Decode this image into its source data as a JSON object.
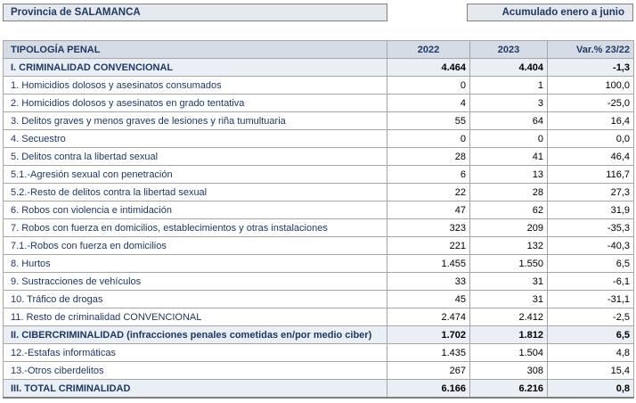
{
  "header": {
    "province": "Provincia de SALAMANCA",
    "period": "Acumulado enero a junio"
  },
  "table": {
    "columns": [
      "TIPOLOGÍA PENAL",
      "2022",
      "2023",
      "Var.% 23/22"
    ],
    "rows": [
      {
        "label": "I. CRIMINALIDAD CONVENCIONAL",
        "y2022": "4.464",
        "y2023": "4.404",
        "var": "-1,3",
        "style": "section"
      },
      {
        "label": "1. Homicidios dolosos y asesinatos consumados",
        "y2022": "0",
        "y2023": "1",
        "var": "100,0",
        "style": "normal"
      },
      {
        "label": "2. Homicidios dolosos y asesinatos en grado tentativa",
        "y2022": "4",
        "y2023": "3",
        "var": "-25,0",
        "style": "normal"
      },
      {
        "label": "3. Delitos graves y menos graves de lesiones y riña tumultuaria",
        "y2022": "55",
        "y2023": "64",
        "var": "16,4",
        "style": "normal"
      },
      {
        "label": "4. Secuestro",
        "y2022": "0",
        "y2023": "0",
        "var": "0,0",
        "style": "normal"
      },
      {
        "label": "5. Delitos contra la libertad sexual",
        "y2022": "28",
        "y2023": "41",
        "var": "46,4",
        "style": "normal"
      },
      {
        "label": "5.1.-Agresión sexual con penetración",
        "y2022": "6",
        "y2023": "13",
        "var": "116,7",
        "style": "normal"
      },
      {
        "label": "5.2.-Resto de delitos contra la libertad sexual",
        "y2022": "22",
        "y2023": "28",
        "var": "27,3",
        "style": "normal"
      },
      {
        "label": "6. Robos con violencia e intimidación",
        "y2022": "47",
        "y2023": "62",
        "var": "31,9",
        "style": "normal"
      },
      {
        "label": "7. Robos con fuerza en domicilios, establecimientos y otras instalaciones",
        "y2022": "323",
        "y2023": "209",
        "var": "-35,3",
        "style": "normal"
      },
      {
        "label": "7.1.-Robos con fuerza en domicilios",
        "y2022": "221",
        "y2023": "132",
        "var": "-40,3",
        "style": "normal"
      },
      {
        "label": "8. Hurtos",
        "y2022": "1.455",
        "y2023": "1.550",
        "var": "6,5",
        "style": "normal"
      },
      {
        "label": "9. Sustracciones de vehículos",
        "y2022": "33",
        "y2023": "31",
        "var": "-6,1",
        "style": "normal"
      },
      {
        "label": "10. Tráfico de drogas",
        "y2022": "45",
        "y2023": "31",
        "var": "-31,1",
        "style": "normal"
      },
      {
        "label": "11. Resto de criminalidad CONVENCIONAL",
        "y2022": "2.474",
        "y2023": "2.412",
        "var": "-2,5",
        "style": "normal"
      },
      {
        "label": "II. CIBERCRIMINALIDAD (infracciones penales cometidas en/por medio ciber)",
        "y2022": "1.702",
        "y2023": "1.812",
        "var": "6,5",
        "style": "section"
      },
      {
        "label": "12.-Estafas informáticas",
        "y2022": "1.435",
        "y2023": "1.504",
        "var": "4,8",
        "style": "normal"
      },
      {
        "label": "13.-Otros ciberdelitos",
        "y2022": "267",
        "y2023": "308",
        "var": "15,4",
        "style": "normal"
      },
      {
        "label": "III. TOTAL CRIMINALIDAD",
        "y2022": "6.166",
        "y2023": "6.216",
        "var": "0,8",
        "style": "total"
      }
    ]
  }
}
